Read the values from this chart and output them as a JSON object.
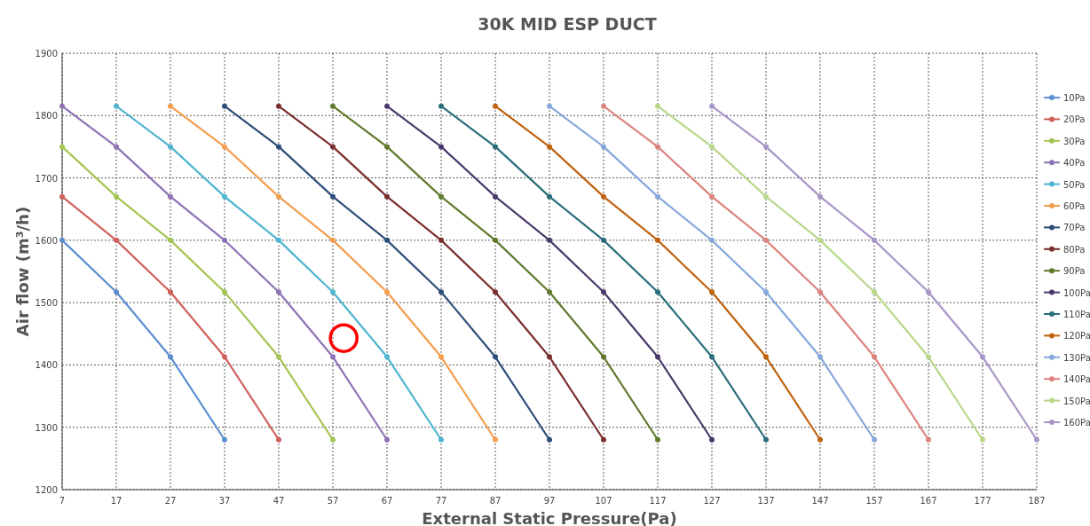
{
  "chart_data": {
    "type": "line",
    "title": "30K  MID  ESP  DUCT",
    "xlabel": "External Static Pressure(Pa)",
    "ylabel": "Air flow (m³/h)",
    "xlim": [
      7,
      187
    ],
    "xticks": [
      7,
      17,
      27,
      37,
      47,
      57,
      67,
      77,
      87,
      97,
      107,
      117,
      127,
      137,
      147,
      157,
      167,
      177,
      187
    ],
    "ylim": [
      1200,
      1900
    ],
    "yticks": [
      1200,
      1300,
      1400,
      1500,
      1600,
      1700,
      1800,
      1900
    ],
    "grid": true,
    "legend": "right",
    "marker": "circle",
    "line_style": "solid",
    "series": [
      {
        "name": "10Pa",
        "color": "#5b8fd0",
        "x": [
          7,
          17,
          27,
          37
        ],
        "values": [
          1600,
          1517,
          1413,
          1280
        ]
      },
      {
        "name": "20Pa",
        "color": "#d0605a",
        "x": [
          7,
          17,
          27,
          37,
          47
        ],
        "values": [
          1670,
          1600,
          1517,
          1413,
          1280
        ]
      },
      {
        "name": "30Pa",
        "color": "#a3c552",
        "x": [
          7,
          17,
          27,
          37,
          47,
          57
        ],
        "values": [
          1750,
          1670,
          1600,
          1517,
          1413,
          1280
        ]
      },
      {
        "name": "40Pa",
        "color": "#8e72b5",
        "x": [
          7,
          17,
          27,
          37,
          47,
          57,
          67
        ],
        "values": [
          1815,
          1750,
          1670,
          1600,
          1517,
          1413,
          1280
        ]
      },
      {
        "name": "50Pa",
        "color": "#4fb5d0",
        "x": [
          17,
          27,
          37,
          47,
          57,
          67,
          77
        ],
        "values": [
          1815,
          1750,
          1670,
          1600,
          1517,
          1413,
          1280
        ]
      },
      {
        "name": "60Pa",
        "color": "#f59d4e",
        "x": [
          27,
          37,
          47,
          57,
          67,
          77,
          87
        ],
        "values": [
          1815,
          1750,
          1670,
          1600,
          1517,
          1413,
          1280
        ]
      },
      {
        "name": "70Pa",
        "color": "#2e4e7a",
        "x": [
          37,
          47,
          57,
          67,
          77,
          87,
          97
        ],
        "values": [
          1815,
          1750,
          1670,
          1600,
          1517,
          1413,
          1280
        ]
      },
      {
        "name": "80Pa",
        "color": "#7a2e2e",
        "x": [
          47,
          57,
          67,
          77,
          87,
          97,
          107
        ],
        "values": [
          1815,
          1750,
          1670,
          1600,
          1517,
          1413,
          1280
        ]
      },
      {
        "name": "90Pa",
        "color": "#5f7a2e",
        "x": [
          57,
          67,
          77,
          87,
          97,
          107,
          117
        ],
        "values": [
          1815,
          1750,
          1670,
          1600,
          1517,
          1413,
          1280
        ]
      },
      {
        "name": "100Pa",
        "color": "#4a3a6a",
        "x": [
          67,
          77,
          87,
          97,
          107,
          117,
          127
        ],
        "values": [
          1815,
          1750,
          1670,
          1600,
          1517,
          1413,
          1280
        ]
      },
      {
        "name": "110Pa",
        "color": "#2a6e7a",
        "x": [
          77,
          87,
          97,
          107,
          117,
          127,
          137
        ],
        "values": [
          1815,
          1750,
          1670,
          1600,
          1517,
          1413,
          1280
        ]
      },
      {
        "name": "120Pa",
        "color": "#c0620e",
        "x": [
          87,
          97,
          107,
          117,
          127,
          137,
          147
        ],
        "values": [
          1815,
          1750,
          1670,
          1600,
          1517,
          1413,
          1280
        ]
      },
      {
        "name": "130Pa",
        "color": "#86a8dc",
        "x": [
          97,
          107,
          117,
          127,
          137,
          147,
          157
        ],
        "values": [
          1815,
          1750,
          1670,
          1600,
          1517,
          1413,
          1280
        ]
      },
      {
        "name": "140Pa",
        "color": "#dc8480",
        "x": [
          107,
          117,
          127,
          137,
          147,
          157,
          167
        ],
        "values": [
          1815,
          1750,
          1670,
          1600,
          1517,
          1413,
          1280
        ]
      },
      {
        "name": "150Pa",
        "color": "#b8d88a",
        "x": [
          117,
          127,
          137,
          147,
          157,
          167,
          177
        ],
        "values": [
          1815,
          1750,
          1670,
          1600,
          1517,
          1413,
          1280
        ]
      },
      {
        "name": "160Pa",
        "color": "#a896c8",
        "x": [
          127,
          137,
          147,
          157,
          167,
          177,
          187
        ],
        "values": [
          1815,
          1750,
          1670,
          1600,
          1517,
          1413,
          1280
        ]
      },
      {
        "type": "scatter",
        "marker": "circle",
        "color": "#ff0000",
        "x": [
          59
        ],
        "values": [
          1443
        ]
      }
    ]
  }
}
